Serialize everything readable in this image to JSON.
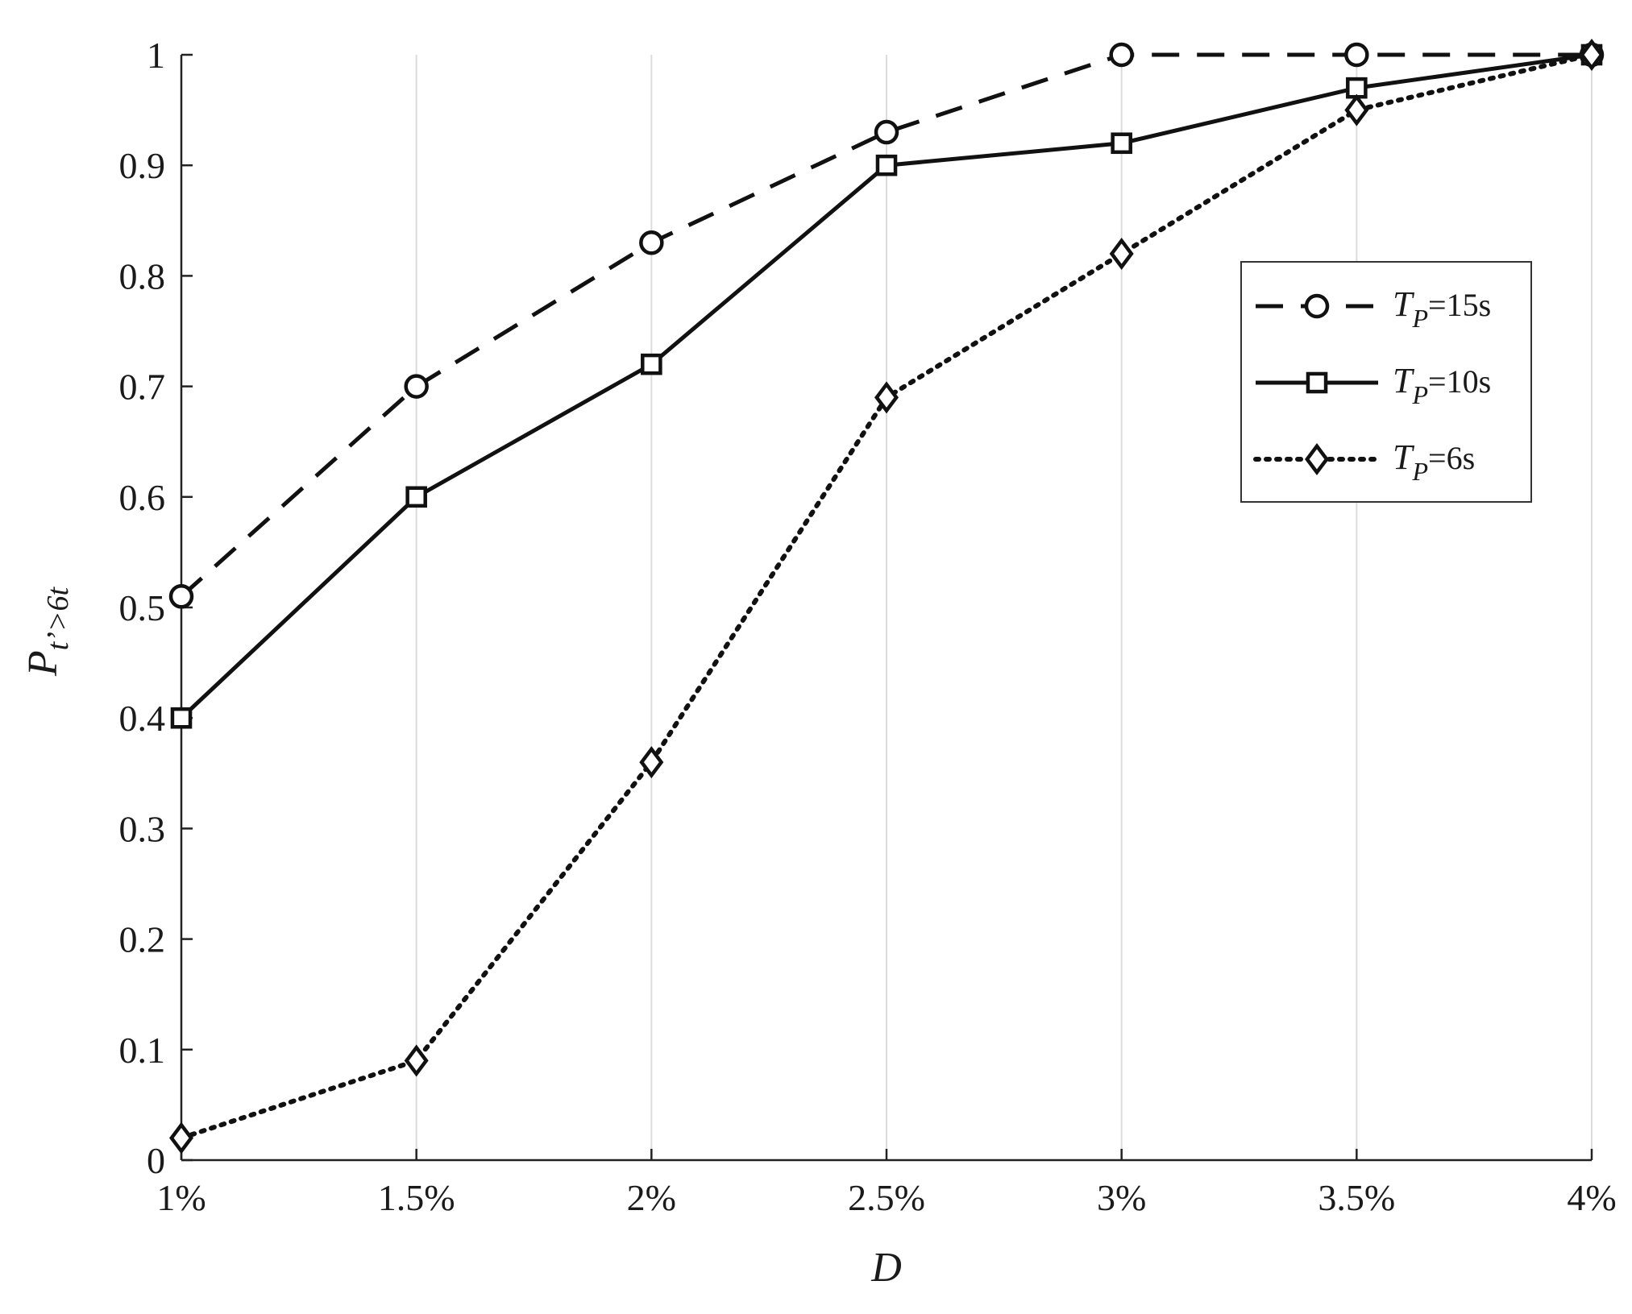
{
  "chart_data": {
    "type": "line",
    "xlabel": "D",
    "ylabel": {
      "main": "P",
      "subscript": "t’>6t"
    },
    "categories": [
      "1%",
      "1.5%",
      "2%",
      "2.5%",
      "3%",
      "3.5%",
      "4%"
    ],
    "x": [
      1,
      1.5,
      2,
      2.5,
      3,
      3.5,
      4
    ],
    "xlim": [
      1,
      4
    ],
    "ylim": [
      0,
      1
    ],
    "yticks": [
      "0",
      "0.1",
      "0.2",
      "0.3",
      "0.4",
      "0.5",
      "0.6",
      "0.7",
      "0.8",
      "0.9",
      "1"
    ],
    "grid": "vertical",
    "legend_position": "right",
    "series": [
      {
        "name": "T_P=15s",
        "label_main": "T",
        "label_sub": "P",
        "label_rest": "=15s",
        "line": "dashed",
        "marker": "circle",
        "color": "#111111",
        "values": [
          0.51,
          0.7,
          0.83,
          0.93,
          1.0,
          1.0,
          1.0
        ]
      },
      {
        "name": "T_P=10s",
        "label_main": "T",
        "label_sub": "P",
        "label_rest": "=10s",
        "line": "solid",
        "marker": "square",
        "color": "#111111",
        "values": [
          0.4,
          0.6,
          0.72,
          0.9,
          0.92,
          0.97,
          1.0
        ]
      },
      {
        "name": "T_P=6s",
        "label_main": "T",
        "label_sub": "P",
        "label_rest": "=6s",
        "line": "dotted",
        "marker": "diamond",
        "color": "#111111",
        "values": [
          0.02,
          0.09,
          0.36,
          0.69,
          0.82,
          0.95,
          1.0
        ]
      }
    ]
  }
}
